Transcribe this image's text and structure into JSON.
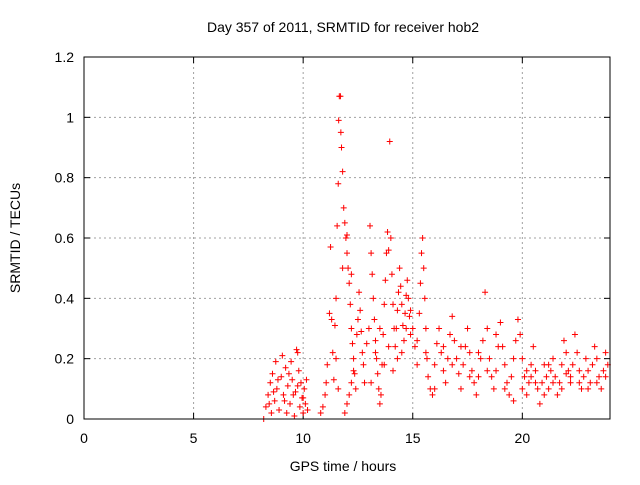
{
  "chart_data": {
    "type": "scatter",
    "title": "Day 357 of 2011, SRMTID for receiver hob2",
    "xlabel": "GPS time / hours",
    "ylabel": "SRMTID / TECUs",
    "xlim": [
      0,
      24
    ],
    "ylim": [
      0,
      1.2
    ],
    "xticks": [
      0,
      5,
      10,
      15,
      20
    ],
    "yticks": [
      0,
      0.2,
      0.4,
      0.6,
      0.8,
      1,
      1.2
    ],
    "xtick_labels": [
      "0",
      "5",
      "10",
      "15",
      "20"
    ],
    "ytick_labels": [
      "0",
      "0.2",
      "0.4",
      "0.6",
      "0.8",
      "1",
      "1.2"
    ],
    "grid": true,
    "marker": "+",
    "series": [
      {
        "name": "SRMTID",
        "color": "#ff0000",
        "points": [
          [
            8.2,
            0.0
          ],
          [
            8.3,
            0.04
          ],
          [
            8.4,
            0.08
          ],
          [
            8.5,
            0.12
          ],
          [
            8.55,
            0.02
          ],
          [
            8.6,
            0.15
          ],
          [
            8.7,
            0.06
          ],
          [
            8.75,
            0.19
          ],
          [
            8.8,
            0.1
          ],
          [
            8.9,
            0.03
          ],
          [
            9.0,
            0.14
          ],
          [
            9.05,
            0.21
          ],
          [
            9.1,
            0.08
          ],
          [
            9.2,
            0.17
          ],
          [
            9.25,
            0.02
          ],
          [
            9.3,
            0.11
          ],
          [
            9.4,
            0.05
          ],
          [
            9.45,
            0.19
          ],
          [
            9.5,
            0.13
          ],
          [
            9.6,
            0.01
          ],
          [
            9.65,
            0.09
          ],
          [
            9.7,
            0.23
          ],
          [
            9.75,
            0.22
          ],
          [
            9.8,
            0.16
          ],
          [
            9.85,
            0.04
          ],
          [
            9.9,
            0.12
          ],
          [
            9.95,
            0.07
          ],
          [
            10.0,
            0.02
          ],
          [
            10.05,
            0.1
          ],
          [
            10.1,
            0.05
          ],
          [
            10.15,
            0.13
          ],
          [
            10.2,
            0.03
          ],
          [
            8.45,
            0.05
          ],
          [
            8.65,
            0.09
          ],
          [
            8.85,
            0.13
          ],
          [
            9.15,
            0.06
          ],
          [
            9.35,
            0.15
          ],
          [
            9.55,
            0.08
          ],
          [
            9.75,
            0.11
          ],
          [
            10.0,
            0.07
          ],
          [
            10.8,
            0.02
          ],
          [
            10.9,
            0.04
          ],
          [
            11.0,
            0.08
          ],
          [
            11.05,
            0.12
          ],
          [
            11.1,
            0.18
          ],
          [
            11.2,
            0.35
          ],
          [
            11.25,
            0.57
          ],
          [
            11.3,
            0.33
          ],
          [
            11.35,
            0.22
          ],
          [
            11.4,
            0.13
          ],
          [
            11.45,
            0.31
          ],
          [
            11.5,
            0.4
          ],
          [
            11.55,
            0.64
          ],
          [
            11.6,
            0.78
          ],
          [
            11.62,
            0.99
          ],
          [
            11.65,
            1.07
          ],
          [
            11.7,
            1.07
          ],
          [
            11.72,
            0.95
          ],
          [
            11.75,
            0.9
          ],
          [
            11.8,
            0.82
          ],
          [
            11.85,
            0.7
          ],
          [
            11.9,
            0.65
          ],
          [
            11.95,
            0.6
          ],
          [
            12.0,
            0.55
          ],
          [
            12.05,
            0.5
          ],
          [
            12.1,
            0.45
          ],
          [
            12.15,
            0.38
          ],
          [
            12.2,
            0.3
          ],
          [
            12.25,
            0.25
          ],
          [
            12.3,
            0.2
          ],
          [
            12.35,
            0.15
          ],
          [
            12.4,
            0.1
          ],
          [
            12.45,
            0.28
          ],
          [
            12.5,
            0.33
          ],
          [
            12.55,
            0.42
          ],
          [
            12.6,
            0.36
          ],
          [
            12.65,
            0.29
          ],
          [
            12.7,
            0.22
          ],
          [
            12.75,
            0.18
          ],
          [
            12.8,
            0.12
          ],
          [
            11.9,
            0.02
          ],
          [
            12.0,
            0.05
          ],
          [
            12.1,
            0.08
          ],
          [
            12.2,
            0.12
          ],
          [
            12.3,
            0.16
          ],
          [
            11.6,
            0.1
          ],
          [
            11.5,
            0.2
          ],
          [
            11.8,
            0.5
          ],
          [
            12.0,
            0.61
          ],
          [
            12.2,
            0.48
          ],
          [
            12.9,
            0.25
          ],
          [
            13.0,
            0.3
          ],
          [
            13.05,
            0.64
          ],
          [
            13.1,
            0.55
          ],
          [
            13.15,
            0.48
          ],
          [
            13.2,
            0.4
          ],
          [
            13.25,
            0.33
          ],
          [
            13.3,
            0.26
          ],
          [
            13.35,
            0.2
          ],
          [
            13.4,
            0.15
          ],
          [
            13.45,
            0.1
          ],
          [
            13.5,
            0.05
          ],
          [
            13.55,
            0.08
          ],
          [
            13.6,
            0.18
          ],
          [
            13.65,
            0.28
          ],
          [
            13.7,
            0.38
          ],
          [
            13.75,
            0.46
          ],
          [
            13.8,
            0.55
          ],
          [
            13.85,
            0.62
          ],
          [
            13.9,
            0.56
          ],
          [
            13.95,
            0.92
          ],
          [
            14.0,
            0.6
          ],
          [
            14.05,
            0.48
          ],
          [
            14.1,
            0.38
          ],
          [
            14.15,
            0.3
          ],
          [
            14.2,
            0.24
          ],
          [
            14.25,
            0.3
          ],
          [
            14.3,
            0.36
          ],
          [
            14.35,
            0.42
          ],
          [
            14.4,
            0.5
          ],
          [
            14.45,
            0.44
          ],
          [
            14.5,
            0.38
          ],
          [
            14.55,
            0.31
          ],
          [
            14.6,
            0.26
          ],
          [
            14.65,
            0.35
          ],
          [
            14.7,
            0.41
          ],
          [
            14.75,
            0.46
          ],
          [
            14.8,
            0.4
          ],
          [
            14.85,
            0.34
          ],
          [
            14.9,
            0.28
          ],
          [
            13.1,
            0.12
          ],
          [
            13.3,
            0.22
          ],
          [
            13.5,
            0.3
          ],
          [
            13.7,
            0.18
          ],
          [
            13.9,
            0.24
          ],
          [
            14.1,
            0.16
          ],
          [
            14.3,
            0.2
          ],
          [
            14.5,
            0.22
          ],
          [
            14.7,
            0.3
          ],
          [
            14.9,
            0.36
          ],
          [
            15.0,
            0.3
          ],
          [
            15.1,
            0.24
          ],
          [
            15.2,
            0.18
          ],
          [
            15.3,
            0.35
          ],
          [
            15.35,
            0.45
          ],
          [
            15.4,
            0.55
          ],
          [
            15.45,
            0.6
          ],
          [
            15.5,
            0.5
          ],
          [
            15.55,
            0.4
          ],
          [
            15.6,
            0.3
          ],
          [
            15.65,
            0.2
          ],
          [
            15.7,
            0.14
          ],
          [
            15.8,
            0.1
          ],
          [
            15.9,
            0.08
          ],
          [
            16.0,
            0.18
          ],
          [
            16.1,
            0.25
          ],
          [
            16.2,
            0.3
          ],
          [
            16.3,
            0.22
          ],
          [
            16.4,
            0.16
          ],
          [
            16.5,
            0.12
          ],
          [
            16.6,
            0.2
          ],
          [
            16.7,
            0.28
          ],
          [
            16.8,
            0.34
          ],
          [
            16.9,
            0.26
          ],
          [
            17.0,
            0.2
          ],
          [
            17.1,
            0.15
          ],
          [
            17.2,
            0.1
          ],
          [
            17.3,
            0.18
          ],
          [
            17.4,
            0.24
          ],
          [
            17.5,
            0.3
          ],
          [
            17.6,
            0.22
          ],
          [
            17.7,
            0.16
          ],
          [
            17.8,
            0.12
          ],
          [
            17.9,
            0.08
          ],
          [
            18.0,
            0.14
          ],
          [
            18.1,
            0.2
          ],
          [
            18.2,
            0.26
          ],
          [
            18.3,
            0.42
          ],
          [
            18.4,
            0.3
          ],
          [
            18.5,
            0.2
          ],
          [
            18.6,
            0.14
          ],
          [
            18.7,
            0.1
          ],
          [
            18.8,
            0.16
          ],
          [
            18.9,
            0.24
          ],
          [
            19.0,
            0.32
          ],
          [
            19.1,
            0.24
          ],
          [
            19.2,
            0.18
          ],
          [
            19.3,
            0.12
          ],
          [
            19.4,
            0.08
          ],
          [
            19.5,
            0.14
          ],
          [
            15.2,
            0.26
          ],
          [
            15.6,
            0.22
          ],
          [
            16.0,
            0.1
          ],
          [
            16.4,
            0.24
          ],
          [
            16.8,
            0.18
          ],
          [
            17.2,
            0.24
          ],
          [
            17.6,
            0.14
          ],
          [
            18.0,
            0.22
          ],
          [
            18.4,
            0.16
          ],
          [
            18.8,
            0.28
          ],
          [
            19.6,
            0.2
          ],
          [
            19.7,
            0.26
          ],
          [
            19.8,
            0.33
          ],
          [
            19.9,
            0.28
          ],
          [
            20.0,
            0.2
          ],
          [
            20.1,
            0.14
          ],
          [
            20.2,
            0.08
          ],
          [
            20.3,
            0.12
          ],
          [
            20.4,
            0.18
          ],
          [
            20.5,
            0.24
          ],
          [
            20.6,
            0.16
          ],
          [
            20.7,
            0.1
          ],
          [
            20.8,
            0.05
          ],
          [
            20.9,
            0.12
          ],
          [
            21.0,
            0.18
          ],
          [
            21.1,
            0.14
          ],
          [
            21.2,
            0.1
          ],
          [
            21.3,
            0.16
          ],
          [
            21.4,
            0.2
          ],
          [
            21.5,
            0.14
          ],
          [
            21.6,
            0.08
          ],
          [
            21.7,
            0.12
          ],
          [
            21.8,
            0.18
          ],
          [
            21.9,
            0.26
          ],
          [
            22.0,
            0.22
          ],
          [
            22.1,
            0.16
          ],
          [
            22.2,
            0.12
          ],
          [
            22.3,
            0.18
          ],
          [
            22.4,
            0.28
          ],
          [
            22.5,
            0.22
          ],
          [
            22.6,
            0.16
          ],
          [
            22.7,
            0.1
          ],
          [
            22.8,
            0.14
          ],
          [
            22.9,
            0.2
          ],
          [
            23.0,
            0.16
          ],
          [
            23.1,
            0.12
          ],
          [
            23.2,
            0.18
          ],
          [
            23.3,
            0.24
          ],
          [
            23.4,
            0.2
          ],
          [
            23.5,
            0.14
          ],
          [
            23.6,
            0.1
          ],
          [
            23.7,
            0.16
          ],
          [
            23.8,
            0.22
          ],
          [
            23.9,
            0.18
          ],
          [
            20.2,
            0.16
          ],
          [
            20.6,
            0.12
          ],
          [
            21.0,
            0.08
          ],
          [
            21.4,
            0.12
          ],
          [
            21.8,
            0.1
          ],
          [
            22.2,
            0.14
          ],
          [
            22.6,
            0.12
          ],
          [
            23.0,
            0.1
          ],
          [
            23.4,
            0.12
          ],
          [
            23.8,
            0.14
          ],
          [
            19.2,
            0.1
          ],
          [
            19.6,
            0.06
          ],
          [
            20.0,
            0.1
          ],
          [
            20.4,
            0.14
          ],
          [
            21.2,
            0.18
          ],
          [
            22.0,
            0.15
          ]
        ]
      }
    ]
  }
}
